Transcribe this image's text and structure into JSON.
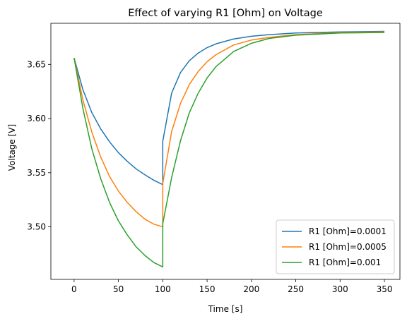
{
  "chart_data": {
    "type": "line",
    "title": "Effect of varying R1 [Ohm] on Voltage",
    "xlabel": "Time [s]",
    "ylabel": "Voltage [V]",
    "xlim": [
      -26.2,
      367.5
    ],
    "ylim": [
      3.4515,
      3.688
    ],
    "xticks": [
      0,
      50,
      100,
      150,
      200,
      250,
      300,
      350
    ],
    "yticks": [
      3.5,
      3.55,
      3.6,
      3.65
    ],
    "ytick_labels": [
      "3.50",
      "3.55",
      "3.60",
      "3.65"
    ],
    "legend_position": "lower-right",
    "grid": false,
    "series": [
      {
        "name": "R1 [Ohm]=0.0001",
        "color": "#1f77b4",
        "x": [
          0,
          10,
          20,
          30,
          40,
          50,
          60,
          70,
          80,
          90,
          100,
          100,
          110,
          120,
          130,
          140,
          150,
          160,
          180,
          200,
          220,
          250,
          300,
          350
        ],
        "y": [
          3.656,
          3.6265,
          3.6055,
          3.5905,
          3.5785,
          3.5685,
          3.5605,
          3.5535,
          3.548,
          3.543,
          3.539,
          3.579,
          3.6235,
          3.6425,
          3.6535,
          3.6605,
          3.6655,
          3.669,
          3.6735,
          3.676,
          3.6775,
          3.679,
          3.68,
          3.6805
        ]
      },
      {
        "name": "R1 [Ohm]=0.0005",
        "color": "#ff7f0e",
        "x": [
          0,
          10,
          20,
          30,
          40,
          50,
          60,
          70,
          80,
          90,
          100,
          100,
          110,
          120,
          130,
          140,
          150,
          160,
          180,
          200,
          220,
          250,
          300,
          350
        ],
        "y": [
          3.656,
          3.617,
          3.5875,
          3.5645,
          3.5465,
          3.533,
          3.5225,
          3.514,
          3.507,
          3.5025,
          3.5,
          3.54,
          3.588,
          3.614,
          3.6315,
          3.6435,
          3.6525,
          3.659,
          3.668,
          3.6725,
          3.675,
          3.6775,
          3.6795,
          3.68
        ]
      },
      {
        "name": "R1 [Ohm]=0.001",
        "color": "#2ca02c",
        "x": [
          0,
          10,
          20,
          30,
          40,
          50,
          60,
          70,
          80,
          90,
          100,
          100,
          110,
          120,
          130,
          140,
          150,
          160,
          180,
          200,
          220,
          250,
          300,
          350
        ],
        "y": [
          3.656,
          3.609,
          3.572,
          3.5445,
          3.5225,
          3.5055,
          3.4925,
          3.4815,
          3.4735,
          3.467,
          3.463,
          3.503,
          3.5455,
          3.5795,
          3.6055,
          3.6235,
          3.6375,
          3.648,
          3.662,
          3.6695,
          3.674,
          3.677,
          3.679,
          3.6795
        ]
      }
    ]
  }
}
